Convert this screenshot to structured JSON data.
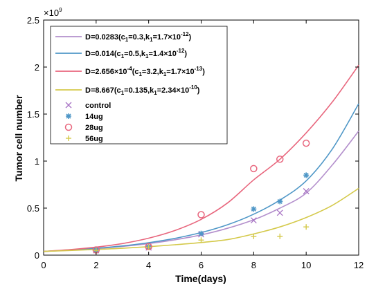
{
  "chart_data": {
    "type": "line",
    "title": "",
    "xlabel": "Time(days)",
    "ylabel": "Tumor cell number",
    "y_multiplier_label": "×10",
    "y_multiplier_exp": "9",
    "xlim": [
      0,
      12
    ],
    "ylim": [
      0,
      2.5
    ],
    "x_ticks": [
      0,
      2,
      4,
      6,
      8,
      10,
      12
    ],
    "y_ticks": [
      0,
      0.5,
      1,
      1.5,
      2,
      2.5
    ],
    "x_tick_labels": [
      "0",
      "2",
      "4",
      "6",
      "8",
      "10",
      "12"
    ],
    "y_tick_labels": [
      "0",
      "0.5",
      "1",
      "1.5",
      "2",
      "2.5"
    ],
    "grid": false,
    "legend_position": "top-left",
    "curves": [
      {
        "name": "D=0.0283(c1=0.3,k1=1.7×10^-12)",
        "legend_parts": [
          "D=0.0283(c",
          "1",
          "=0.3,k",
          "1",
          "=1.7×10",
          "-12",
          ")"
        ],
        "color": "#b38fcc",
        "x": [
          0,
          1,
          2,
          3,
          4,
          5,
          6,
          7,
          8,
          9,
          10,
          11,
          12
        ],
        "y": [
          0.04,
          0.053,
          0.07,
          0.093,
          0.123,
          0.163,
          0.215,
          0.285,
          0.376,
          0.5,
          0.66,
          0.96,
          1.32
        ]
      },
      {
        "name": "D=0.014(c1=0.5,k1=1.4×10^-12)",
        "legend_parts": [
          "D=0.014(c",
          "1",
          "=0.5,k",
          "1",
          "=1.4×10",
          "-12",
          ")"
        ],
        "color": "#4f97c7",
        "x": [
          0,
          1,
          2,
          3,
          4,
          5,
          6,
          7,
          8,
          9,
          10,
          11,
          12
        ],
        "y": [
          0.04,
          0.054,
          0.073,
          0.098,
          0.132,
          0.178,
          0.24,
          0.323,
          0.435,
          0.586,
          0.79,
          1.13,
          1.61
        ]
      },
      {
        "name": "D=2.656×10^-4(c1=3.2,k1=1.7×10^-13)",
        "legend_parts": [
          "D=2.656×10",
          "-4",
          "(c",
          "1",
          "=3.2,k",
          "1",
          "=1.7×10",
          "-13",
          ")"
        ],
        "color": "#e8667d",
        "x": [
          0,
          1,
          2,
          3,
          4,
          5,
          6,
          7,
          8,
          9,
          10,
          11,
          12
        ],
        "y": [
          0.04,
          0.058,
          0.085,
          0.123,
          0.18,
          0.262,
          0.38,
          0.554,
          0.8,
          1.02,
          1.3,
          1.63,
          2.02
        ]
      },
      {
        "name": "D=8.667(c1=0.135,k1=2.34×10^-10)",
        "legend_parts": [
          "D=8.667(c",
          "1",
          "=0.135,k",
          "1",
          "=2.34×10",
          "-10",
          ")"
        ],
        "color": "#d4c94a",
        "x": [
          0,
          1,
          2,
          3,
          4,
          5,
          6,
          7,
          8,
          9,
          10,
          11,
          12
        ],
        "y": [
          0.04,
          0.049,
          0.06,
          0.073,
          0.09,
          0.11,
          0.134,
          0.165,
          0.225,
          0.3,
          0.4,
          0.53,
          0.71
        ]
      }
    ],
    "scatter_series": [
      {
        "name": "control",
        "marker": "x",
        "color": "#a773c4",
        "x": [
          2,
          4,
          6,
          8,
          9,
          10
        ],
        "y": [
          0.05,
          0.08,
          0.22,
          0.37,
          0.45,
          0.68
        ]
      },
      {
        "name": "14ug",
        "marker": "star",
        "color": "#4f97c7",
        "x": [
          2,
          4,
          6,
          8,
          9,
          10
        ],
        "y": [
          0.055,
          0.09,
          0.23,
          0.49,
          0.57,
          0.85
        ]
      },
      {
        "name": "28ug",
        "marker": "circle",
        "color": "#e8667d",
        "x": [
          2,
          4,
          6,
          8,
          9,
          10
        ],
        "y": [
          0.055,
          0.09,
          0.43,
          0.92,
          1.02,
          1.19
        ]
      },
      {
        "name": "56ug",
        "marker": "plus",
        "color": "#d4c94a",
        "x": [
          2,
          4,
          6,
          8,
          9,
          10
        ],
        "y": [
          0.05,
          0.085,
          0.16,
          0.2,
          0.2,
          0.3
        ]
      }
    ]
  }
}
